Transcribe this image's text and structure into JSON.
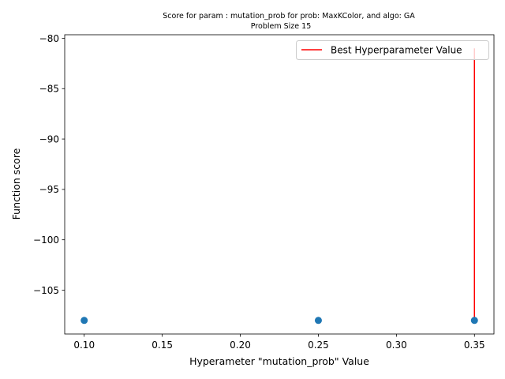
{
  "chart_data": {
    "type": "scatter",
    "title": "Score for param : mutation_prob for prob: MaxKColor, and algo: GA",
    "subtitle": "Problem Size 15",
    "xlabel": "Hyperameter \"mutation_prob\" Value",
    "ylabel": "Function score",
    "xlim": [
      0.0875,
      0.3625
    ],
    "ylim": [
      -109.35,
      -79.65
    ],
    "xticks": [
      0.1,
      0.15,
      0.2,
      0.25,
      0.3,
      0.35
    ],
    "xtick_labels": [
      "0.10",
      "0.15",
      "0.20",
      "0.25",
      "0.30",
      "0.35"
    ],
    "yticks": [
      -105,
      -100,
      -95,
      -90,
      -85,
      -80
    ],
    "ytick_labels": [
      "−105",
      "−100",
      "−95",
      "−90",
      "−85",
      "−80"
    ],
    "grid": false,
    "legend_position": "top-right",
    "series": [
      {
        "marker": "circle",
        "color": "#1f77b4",
        "x": [
          0.1,
          0.25,
          0.35
        ],
        "y": [
          -108,
          -108,
          -108
        ]
      }
    ],
    "vlines": [
      {
        "name": "Best Hyperparameter Value",
        "x": 0.35,
        "ymin": -108,
        "ymax": -81,
        "color": "#ff0000"
      }
    ],
    "legend": [
      {
        "label": "Best Hyperparameter Value",
        "color": "#ff0000",
        "style": "line"
      }
    ]
  }
}
